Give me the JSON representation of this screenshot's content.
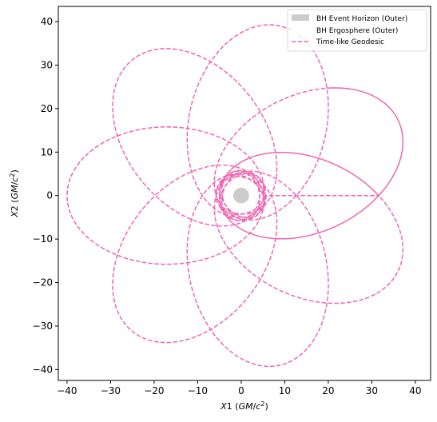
{
  "chart_data": {
    "type": "line",
    "title": "",
    "xlabel": "X1 (GM/c²)",
    "ylabel": "X2 (GM/c²)",
    "xlim": [
      -42,
      43.5
    ],
    "ylim": [
      -42.5,
      43.5
    ],
    "xticks": [
      -40,
      -30,
      -20,
      -10,
      0,
      10,
      20,
      30,
      40
    ],
    "yticks": [
      -40,
      -30,
      -20,
      -10,
      0,
      10,
      20,
      30,
      40
    ],
    "xtick_labels": [
      "−40",
      "−30",
      "−20",
      "−10",
      "0",
      "10",
      "20",
      "30",
      "40"
    ],
    "ytick_labels": [
      "−40",
      "−30",
      "−20",
      "−10",
      "0",
      "10",
      "20",
      "30",
      "40"
    ],
    "grid": false,
    "legend_placement": "top-right",
    "legend": [
      {
        "label": "BH Event Horizon (Outer)",
        "style": "patch",
        "color": "#cccccc"
      },
      {
        "label": "BH Ergosphere (Outer)",
        "style": "none",
        "color": "#ffffff"
      },
      {
        "label": "Time-like Geodesic",
        "style": "dashed",
        "color": "#ee66b3"
      }
    ],
    "series": [
      {
        "name": "Time-like Geodesic",
        "style": "dashed",
        "color": "#ee66b3",
        "orbit": {
          "periapsis": 5.0,
          "apoapsis": 40.0,
          "precession_deg_per_orbit": 45,
          "orbits": 8,
          "start_angle_deg": 0
        },
        "inner_loops": {
          "radius_min": 4.2,
          "radius_max": 5.8,
          "turns": 6
        }
      }
    ],
    "event_horizon": {
      "radius": 1.8,
      "color": "#cccccc"
    },
    "ergosphere": {
      "radius": 2.0,
      "color": "#ffffff"
    }
  }
}
